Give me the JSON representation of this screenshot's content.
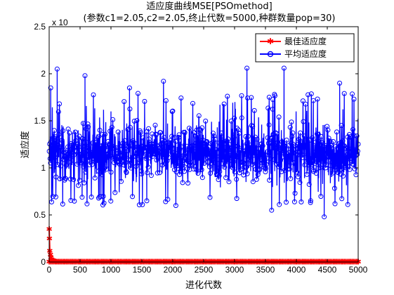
{
  "chart_data": {
    "type": "line",
    "title": "适应度曲线MSE[PSOmethod]",
    "subtitle": "(参数c1=2.05,c2=2.05,终止代数=5000,种群数量pop=30)",
    "xlabel": "进化代数",
    "ylabel": "适应度",
    "y_exponent_label": "x 10",
    "xlim": [
      0,
      5000
    ],
    "ylim": [
      0,
      2.5
    ],
    "xticks": [
      "0",
      "500",
      "1000",
      "1500",
      "2000",
      "2500",
      "3000",
      "3500",
      "4000",
      "4500",
      "5000"
    ],
    "yticks": [
      "0",
      "0.5",
      "1",
      "1.5",
      "2",
      "2.5"
    ],
    "grid": false,
    "legend_position": "top-right",
    "series": [
      {
        "name": "最佳适应度",
        "color": "#ff0000",
        "marker": "star",
        "x": [
          1,
          5,
          10,
          20,
          30,
          40,
          50,
          60,
          80,
          100,
          150,
          200,
          300,
          500,
          1000,
          2000,
          3000,
          4000,
          5000
        ],
        "y": [
          0.35,
          0.25,
          0.12,
          0.08,
          0.05,
          0.03,
          0.02,
          0.015,
          0.01,
          0.008,
          0.005,
          0.004,
          0.003,
          0.002,
          0.002,
          0.002,
          0.002,
          0.002,
          0.002
        ]
      },
      {
        "name": "平均适应度",
        "color": "#0000ff",
        "marker": "circle",
        "x_range": [
          1,
          5000
        ],
        "typical_range": [
          0.7,
          1.6
        ],
        "mean": 1.15,
        "max": 2.06,
        "min": 0.48,
        "peaks": [
          {
            "x": 25,
            "y": 1.85
          },
          {
            "x": 130,
            "y": 2.05
          },
          {
            "x": 580,
            "y": 1.98
          },
          {
            "x": 1000,
            "y": 1.6
          },
          {
            "x": 1300,
            "y": 1.85
          },
          {
            "x": 1850,
            "y": 1.92
          },
          {
            "x": 3200,
            "y": 2.06
          },
          {
            "x": 3800,
            "y": 2.06
          },
          {
            "x": 4700,
            "y": 1.9
          }
        ],
        "troughs": [
          {
            "x": 1580,
            "y": 0.65
          },
          {
            "x": 2050,
            "y": 0.6
          },
          {
            "x": 3600,
            "y": 0.55
          },
          {
            "x": 4450,
            "y": 0.48
          }
        ]
      }
    ]
  }
}
